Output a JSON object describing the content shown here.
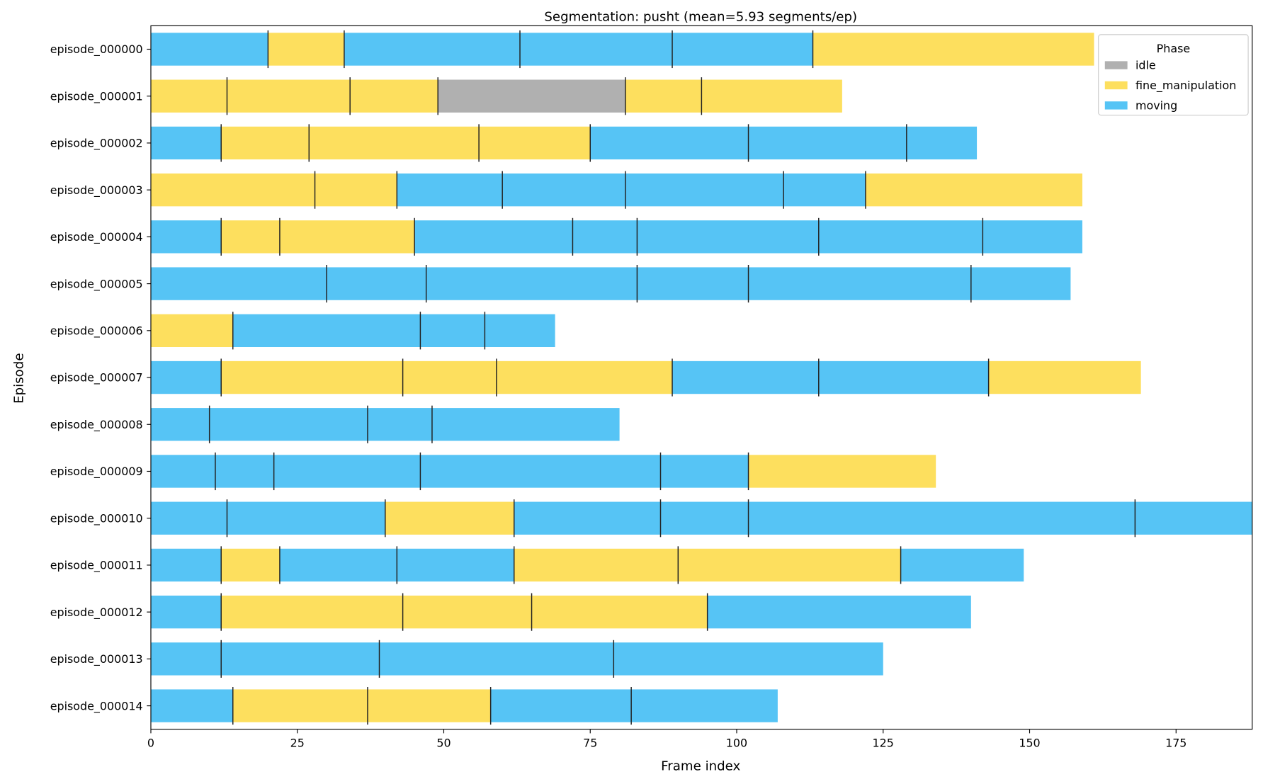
{
  "chart_data": {
    "type": "bar",
    "orientation": "horizontal-stacked-timeline",
    "title": "Segmentation: pusht  (mean=5.93 segments/ep)",
    "xlabel": "Frame index",
    "ylabel": "Episode",
    "xlim": [
      0,
      188
    ],
    "xticks": [
      0,
      25,
      50,
      75,
      100,
      125,
      150,
      175
    ],
    "grid": false,
    "legend": {
      "title": "Phase",
      "placement": "top-right",
      "entries": [
        {
          "name": "idle",
          "color": "#B0B0B0"
        },
        {
          "name": "fine_manipulation",
          "color": "#FDDF5E"
        },
        {
          "name": "moving",
          "color": "#56C4F5"
        }
      ]
    },
    "boundary_color": "#222222",
    "episodes": [
      {
        "name": "episode_000000",
        "segments": [
          [
            0,
            20,
            "moving"
          ],
          [
            20,
            33,
            "fine_manipulation"
          ],
          [
            33,
            63,
            "moving"
          ],
          [
            63,
            89,
            "moving"
          ],
          [
            89,
            113,
            "moving"
          ],
          [
            113,
            161,
            "fine_manipulation"
          ]
        ]
      },
      {
        "name": "episode_000001",
        "segments": [
          [
            0,
            13,
            "fine_manipulation"
          ],
          [
            13,
            34,
            "fine_manipulation"
          ],
          [
            34,
            49,
            "fine_manipulation"
          ],
          [
            49,
            81,
            "idle"
          ],
          [
            81,
            94,
            "fine_manipulation"
          ],
          [
            94,
            118,
            "fine_manipulation"
          ]
        ]
      },
      {
        "name": "episode_000002",
        "segments": [
          [
            0,
            12,
            "moving"
          ],
          [
            12,
            27,
            "fine_manipulation"
          ],
          [
            27,
            56,
            "fine_manipulation"
          ],
          [
            56,
            75,
            "fine_manipulation"
          ],
          [
            75,
            102,
            "moving"
          ],
          [
            102,
            129,
            "moving"
          ],
          [
            129,
            141,
            "moving"
          ]
        ]
      },
      {
        "name": "episode_000003",
        "segments": [
          [
            0,
            28,
            "fine_manipulation"
          ],
          [
            28,
            42,
            "fine_manipulation"
          ],
          [
            42,
            60,
            "moving"
          ],
          [
            60,
            81,
            "moving"
          ],
          [
            81,
            108,
            "moving"
          ],
          [
            108,
            122,
            "moving"
          ],
          [
            122,
            159,
            "fine_manipulation"
          ]
        ]
      },
      {
        "name": "episode_000004",
        "segments": [
          [
            0,
            12,
            "moving"
          ],
          [
            12,
            22,
            "fine_manipulation"
          ],
          [
            22,
            45,
            "fine_manipulation"
          ],
          [
            45,
            72,
            "moving"
          ],
          [
            72,
            83,
            "moving"
          ],
          [
            83,
            114,
            "moving"
          ],
          [
            114,
            142,
            "moving"
          ],
          [
            142,
            159,
            "moving"
          ]
        ]
      },
      {
        "name": "episode_000005",
        "segments": [
          [
            0,
            30,
            "moving"
          ],
          [
            30,
            47,
            "moving"
          ],
          [
            47,
            83,
            "moving"
          ],
          [
            83,
            102,
            "moving"
          ],
          [
            102,
            140,
            "moving"
          ],
          [
            140,
            157,
            "moving"
          ]
        ]
      },
      {
        "name": "episode_000006",
        "segments": [
          [
            0,
            14,
            "fine_manipulation"
          ],
          [
            14,
            46,
            "moving"
          ],
          [
            46,
            57,
            "moving"
          ],
          [
            57,
            69,
            "moving"
          ]
        ]
      },
      {
        "name": "episode_000007",
        "segments": [
          [
            0,
            12,
            "moving"
          ],
          [
            12,
            43,
            "fine_manipulation"
          ],
          [
            43,
            59,
            "fine_manipulation"
          ],
          [
            59,
            89,
            "fine_manipulation"
          ],
          [
            89,
            114,
            "moving"
          ],
          [
            114,
            143,
            "moving"
          ],
          [
            143,
            169,
            "fine_manipulation"
          ]
        ]
      },
      {
        "name": "episode_000008",
        "segments": [
          [
            0,
            10,
            "moving"
          ],
          [
            10,
            37,
            "moving"
          ],
          [
            37,
            48,
            "moving"
          ],
          [
            48,
            80,
            "moving"
          ]
        ]
      },
      {
        "name": "episode_000009",
        "segments": [
          [
            0,
            11,
            "moving"
          ],
          [
            11,
            21,
            "moving"
          ],
          [
            21,
            46,
            "moving"
          ],
          [
            46,
            87,
            "moving"
          ],
          [
            87,
            102,
            "moving"
          ],
          [
            102,
            134,
            "fine_manipulation"
          ]
        ]
      },
      {
        "name": "episode_000010",
        "segments": [
          [
            0,
            13,
            "moving"
          ],
          [
            13,
            40,
            "moving"
          ],
          [
            40,
            62,
            "fine_manipulation"
          ],
          [
            62,
            87,
            "moving"
          ],
          [
            87,
            102,
            "moving"
          ],
          [
            102,
            168,
            "moving"
          ],
          [
            168,
            188,
            "moving"
          ]
        ]
      },
      {
        "name": "episode_000011",
        "segments": [
          [
            0,
            12,
            "moving"
          ],
          [
            12,
            22,
            "fine_manipulation"
          ],
          [
            22,
            42,
            "moving"
          ],
          [
            42,
            62,
            "moving"
          ],
          [
            62,
            90,
            "fine_manipulation"
          ],
          [
            90,
            128,
            "fine_manipulation"
          ],
          [
            128,
            149,
            "moving"
          ]
        ]
      },
      {
        "name": "episode_000012",
        "segments": [
          [
            0,
            12,
            "moving"
          ],
          [
            12,
            43,
            "fine_manipulation"
          ],
          [
            43,
            65,
            "fine_manipulation"
          ],
          [
            65,
            95,
            "fine_manipulation"
          ],
          [
            95,
            140,
            "moving"
          ]
        ]
      },
      {
        "name": "episode_000013",
        "segments": [
          [
            0,
            12,
            "moving"
          ],
          [
            12,
            39,
            "moving"
          ],
          [
            39,
            79,
            "moving"
          ],
          [
            79,
            125,
            "moving"
          ]
        ]
      },
      {
        "name": "episode_000014",
        "segments": [
          [
            0,
            14,
            "moving"
          ],
          [
            14,
            37,
            "fine_manipulation"
          ],
          [
            37,
            58,
            "fine_manipulation"
          ],
          [
            58,
            82,
            "moving"
          ],
          [
            82,
            107,
            "moving"
          ]
        ]
      }
    ]
  }
}
